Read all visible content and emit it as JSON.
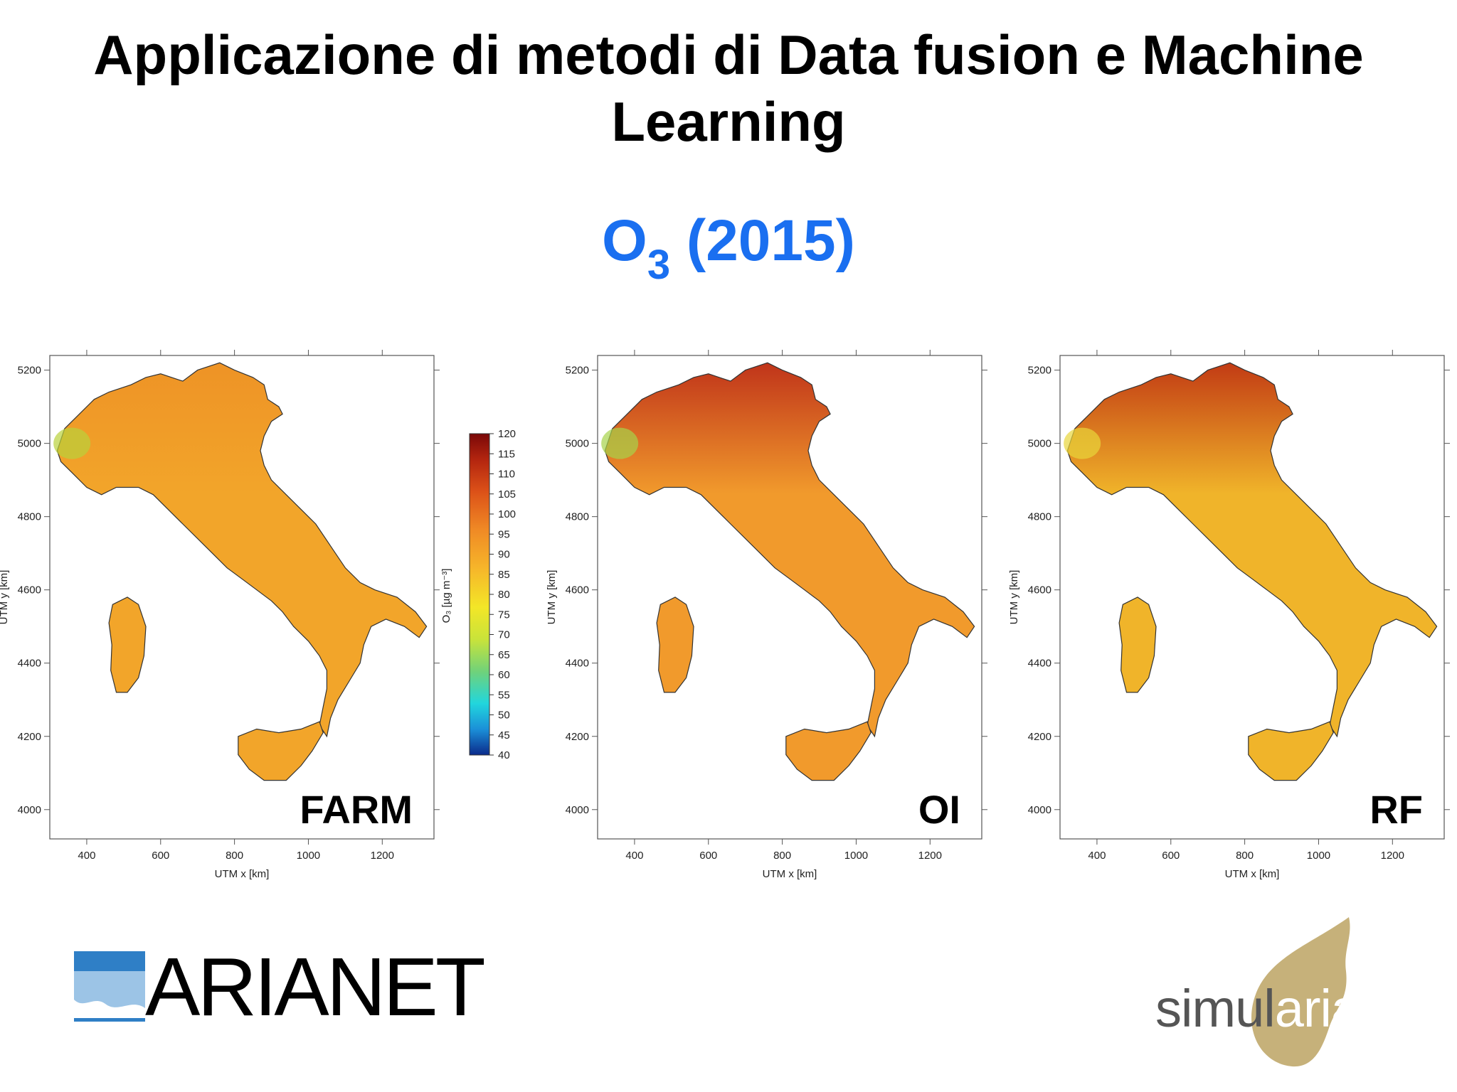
{
  "slide": {
    "title": "Applicazione di metodi di Data fusion e Machine Learning",
    "subtitle_main": "O",
    "subtitle_sub": "3",
    "subtitle_rest": " (2015)"
  },
  "axes": {
    "xlabel": "UTM x [km]",
    "ylabel": "UTM y [km]",
    "x_ticks": [
      "400",
      "600",
      "800",
      "1000",
      "1200"
    ],
    "y_ticks": [
      "5200",
      "5000",
      "4800",
      "4600",
      "4400",
      "4200",
      "4000"
    ]
  },
  "panels": [
    {
      "label": "FARM",
      "fill": "#f2a52a",
      "north_fill": "#ee9326",
      "accent": "#b9d23a"
    },
    {
      "label": "OI",
      "fill": "#f19a2c",
      "north_fill": "#c0341a",
      "accent": "#a7d34a"
    },
    {
      "label": "RF",
      "fill": "#f0b42a",
      "north_fill": "#c23b14",
      "accent": "#e8d63a"
    }
  ],
  "colorbar": {
    "label": "O₃ [µg m⁻³]",
    "ticks": [
      "120",
      "115",
      "110",
      "105",
      "100",
      "95",
      "90",
      "85",
      "80",
      "75",
      "70",
      "65",
      "60",
      "55",
      "50",
      "45",
      "40"
    ],
    "range": [
      40,
      120
    ]
  },
  "logos": {
    "left": "ARIANET",
    "right_a": "simul",
    "right_b": "aria"
  },
  "colors": {
    "title": "#000000",
    "subtitle": "#1a6ff0"
  }
}
